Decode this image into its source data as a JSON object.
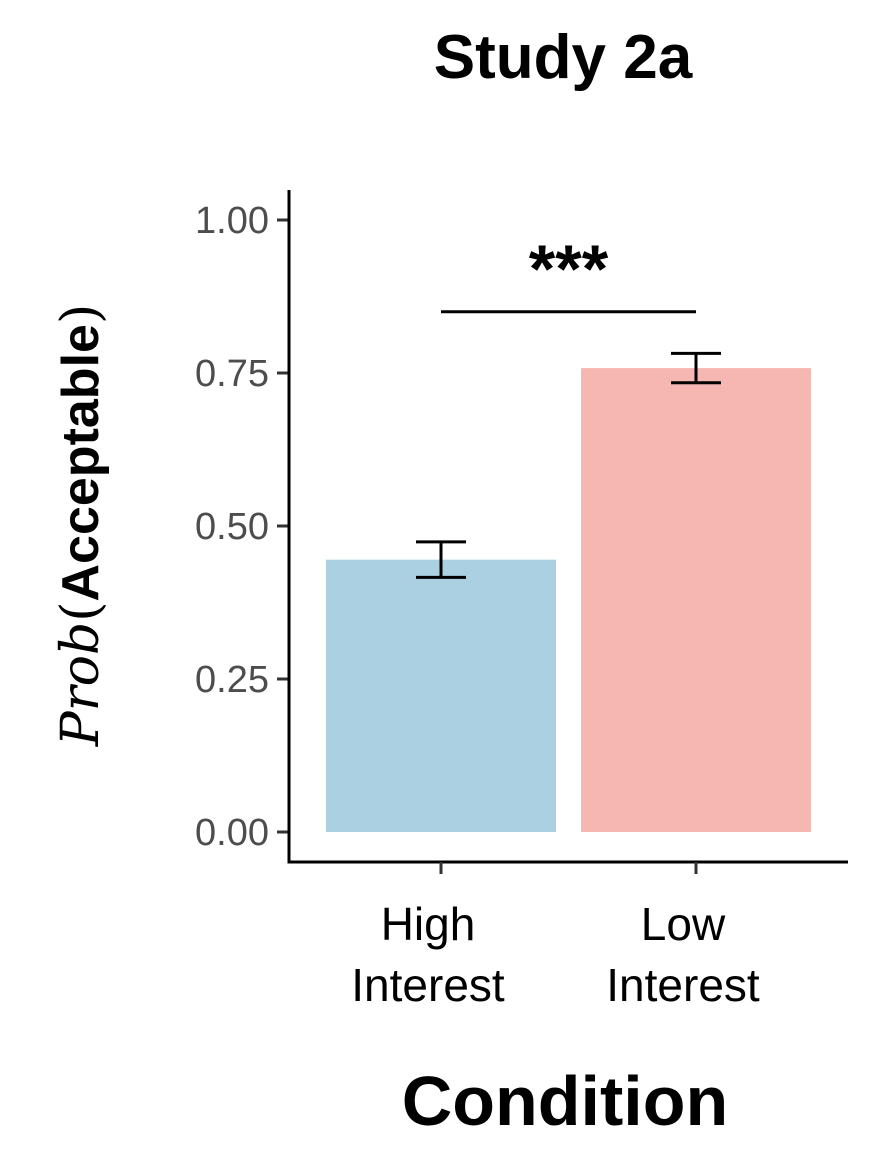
{
  "chart_data": {
    "type": "bar",
    "title": "Study 2a",
    "xlabel": "Condition",
    "ylabel": {
      "prefix": "Prob",
      "open_paren": "(",
      "main": "Acceptable",
      "close_paren": ")"
    },
    "categories": [
      {
        "lines": [
          "High",
          "Interest"
        ],
        "key": "High Interest"
      },
      {
        "lines": [
          "Low",
          "Interest"
        ],
        "key": "Low Interest"
      }
    ],
    "values": [
      0.445,
      0.758
    ],
    "error_bars": [
      {
        "low": 0.416,
        "high": 0.474
      },
      {
        "low": 0.734,
        "high": 0.782
      }
    ],
    "colors": [
      "#abd0e2",
      "#f6b6b2"
    ],
    "ylim": [
      -0.05,
      1.05
    ],
    "yticks": [
      0,
      0.25,
      0.5,
      0.75,
      1
    ],
    "ytick_labels": [
      "0.00",
      "0.25",
      "0.50",
      "0.75",
      "1.00"
    ],
    "significance": {
      "label": "***",
      "y": 0.85
    },
    "grid": false,
    "legend": "none"
  }
}
